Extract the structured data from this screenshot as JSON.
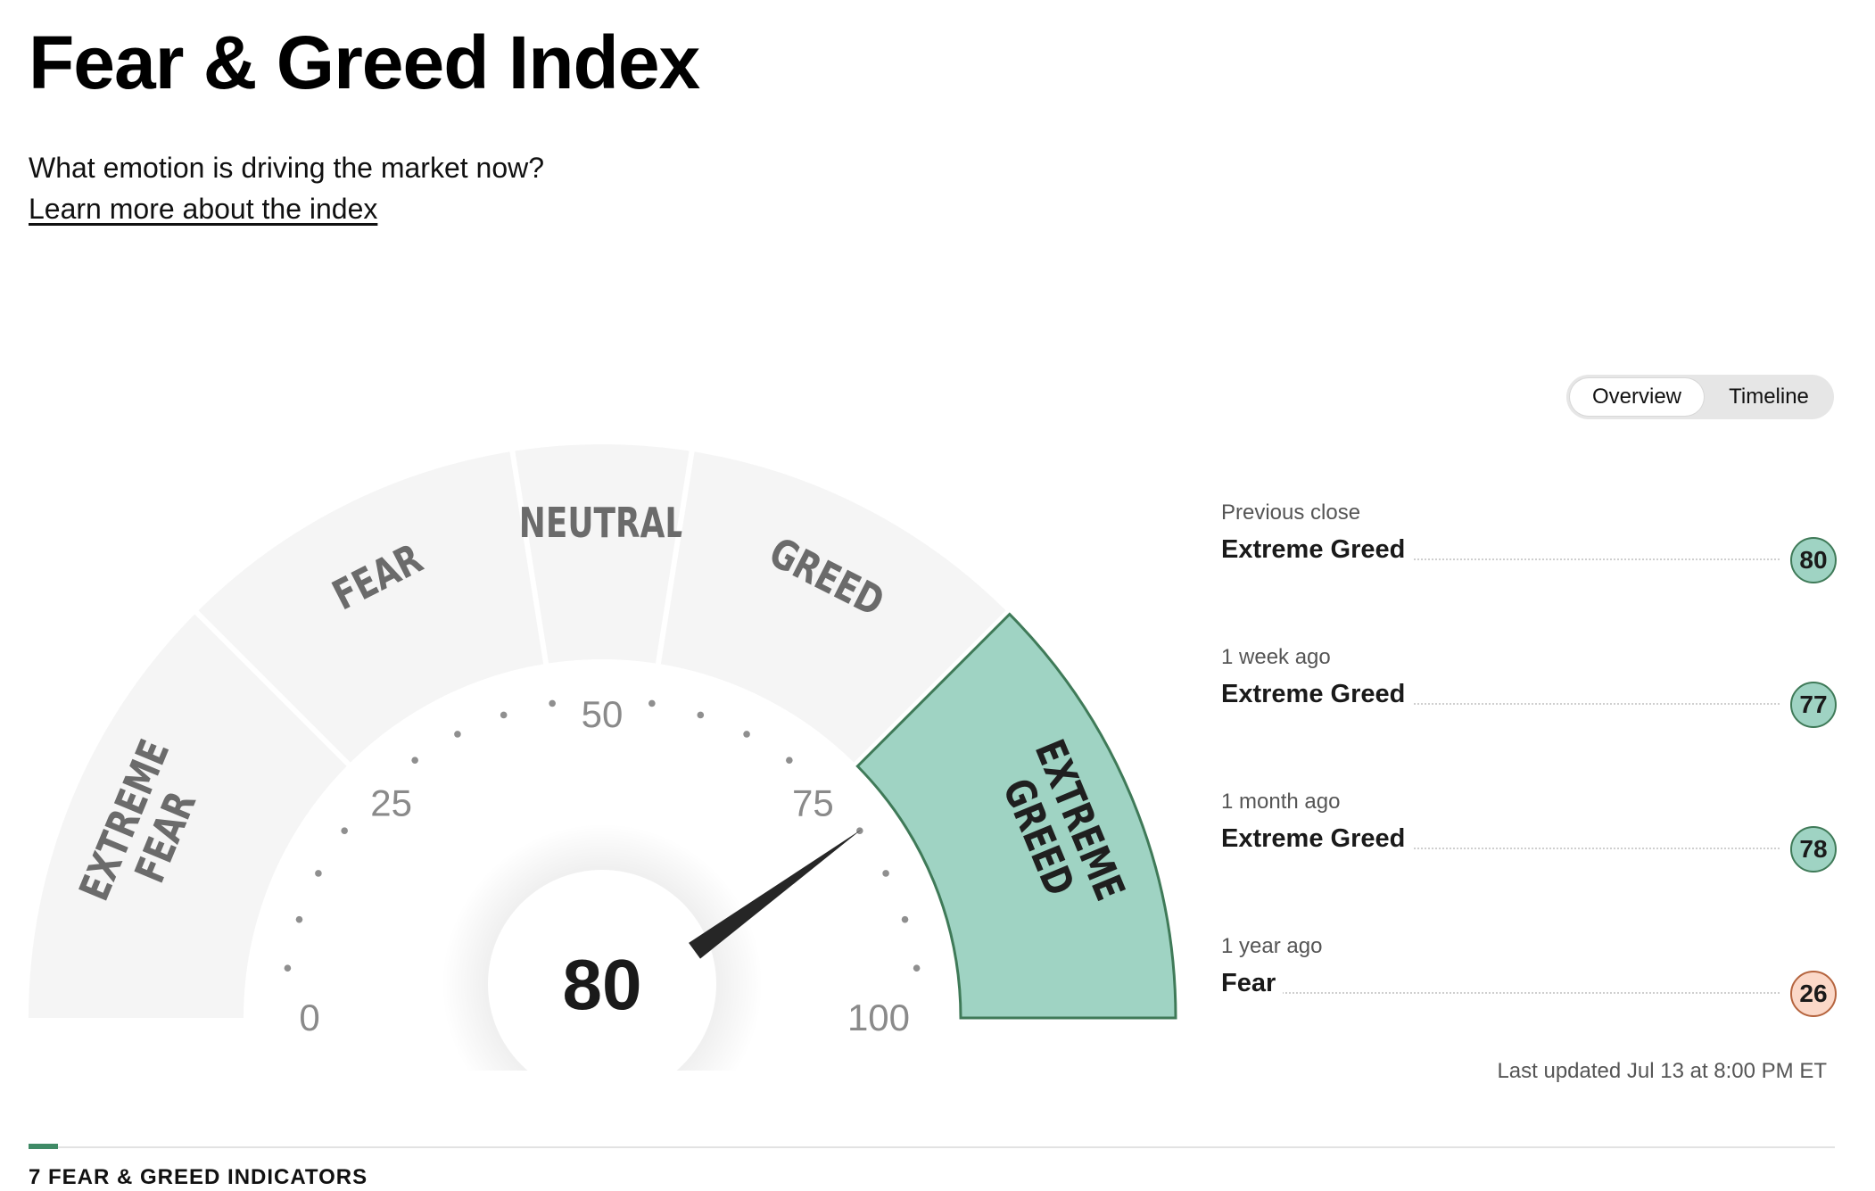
{
  "header": {
    "title": "Fear & Greed Index",
    "subtitle": "What emotion is driving the market now?",
    "learn_link": "Learn more about the index"
  },
  "gauge": {
    "value": 80,
    "value_label": "80",
    "ticks": [
      "0",
      "25",
      "50",
      "75",
      "100"
    ],
    "segments": [
      {
        "lines": [
          "EXTREME",
          "FEAR"
        ],
        "from": 0,
        "to": 25
      },
      {
        "lines": [
          "FEAR"
        ],
        "from": 25,
        "to": 45
      },
      {
        "lines": [
          "NEUTRAL"
        ],
        "from": 45,
        "to": 55
      },
      {
        "lines": [
          "GREED"
        ],
        "from": 55,
        "to": 75
      },
      {
        "lines": [
          "EXTREME",
          "GREED"
        ],
        "from": 75,
        "to": 100
      }
    ],
    "active_segment": 4,
    "colors": {
      "segment_fill": "#f5f5f5",
      "active_fill": "#9fd3c3",
      "active_stroke": "#3f7a58",
      "label": "#6b6b6b",
      "active_label": "#1f1f1f",
      "tick_label": "#8a8a8a",
      "needle": "#262626"
    }
  },
  "toggle": {
    "options": [
      "Overview",
      "Timeline"
    ],
    "active": "Overview"
  },
  "history": [
    {
      "when": "Previous close",
      "rating": "Extreme Greed",
      "value": "80",
      "tone": "greed"
    },
    {
      "when": "1 week ago",
      "rating": "Extreme Greed",
      "value": "77",
      "tone": "greed"
    },
    {
      "when": "1 month ago",
      "rating": "Extreme Greed",
      "value": "78",
      "tone": "greed"
    },
    {
      "when": "1 year ago",
      "rating": "Fear",
      "value": "26",
      "tone": "fear"
    }
  ],
  "last_updated": "Last updated Jul 13 at 8:00 PM ET",
  "indicators_heading": "7 FEAR & GREED INDICATORS"
}
